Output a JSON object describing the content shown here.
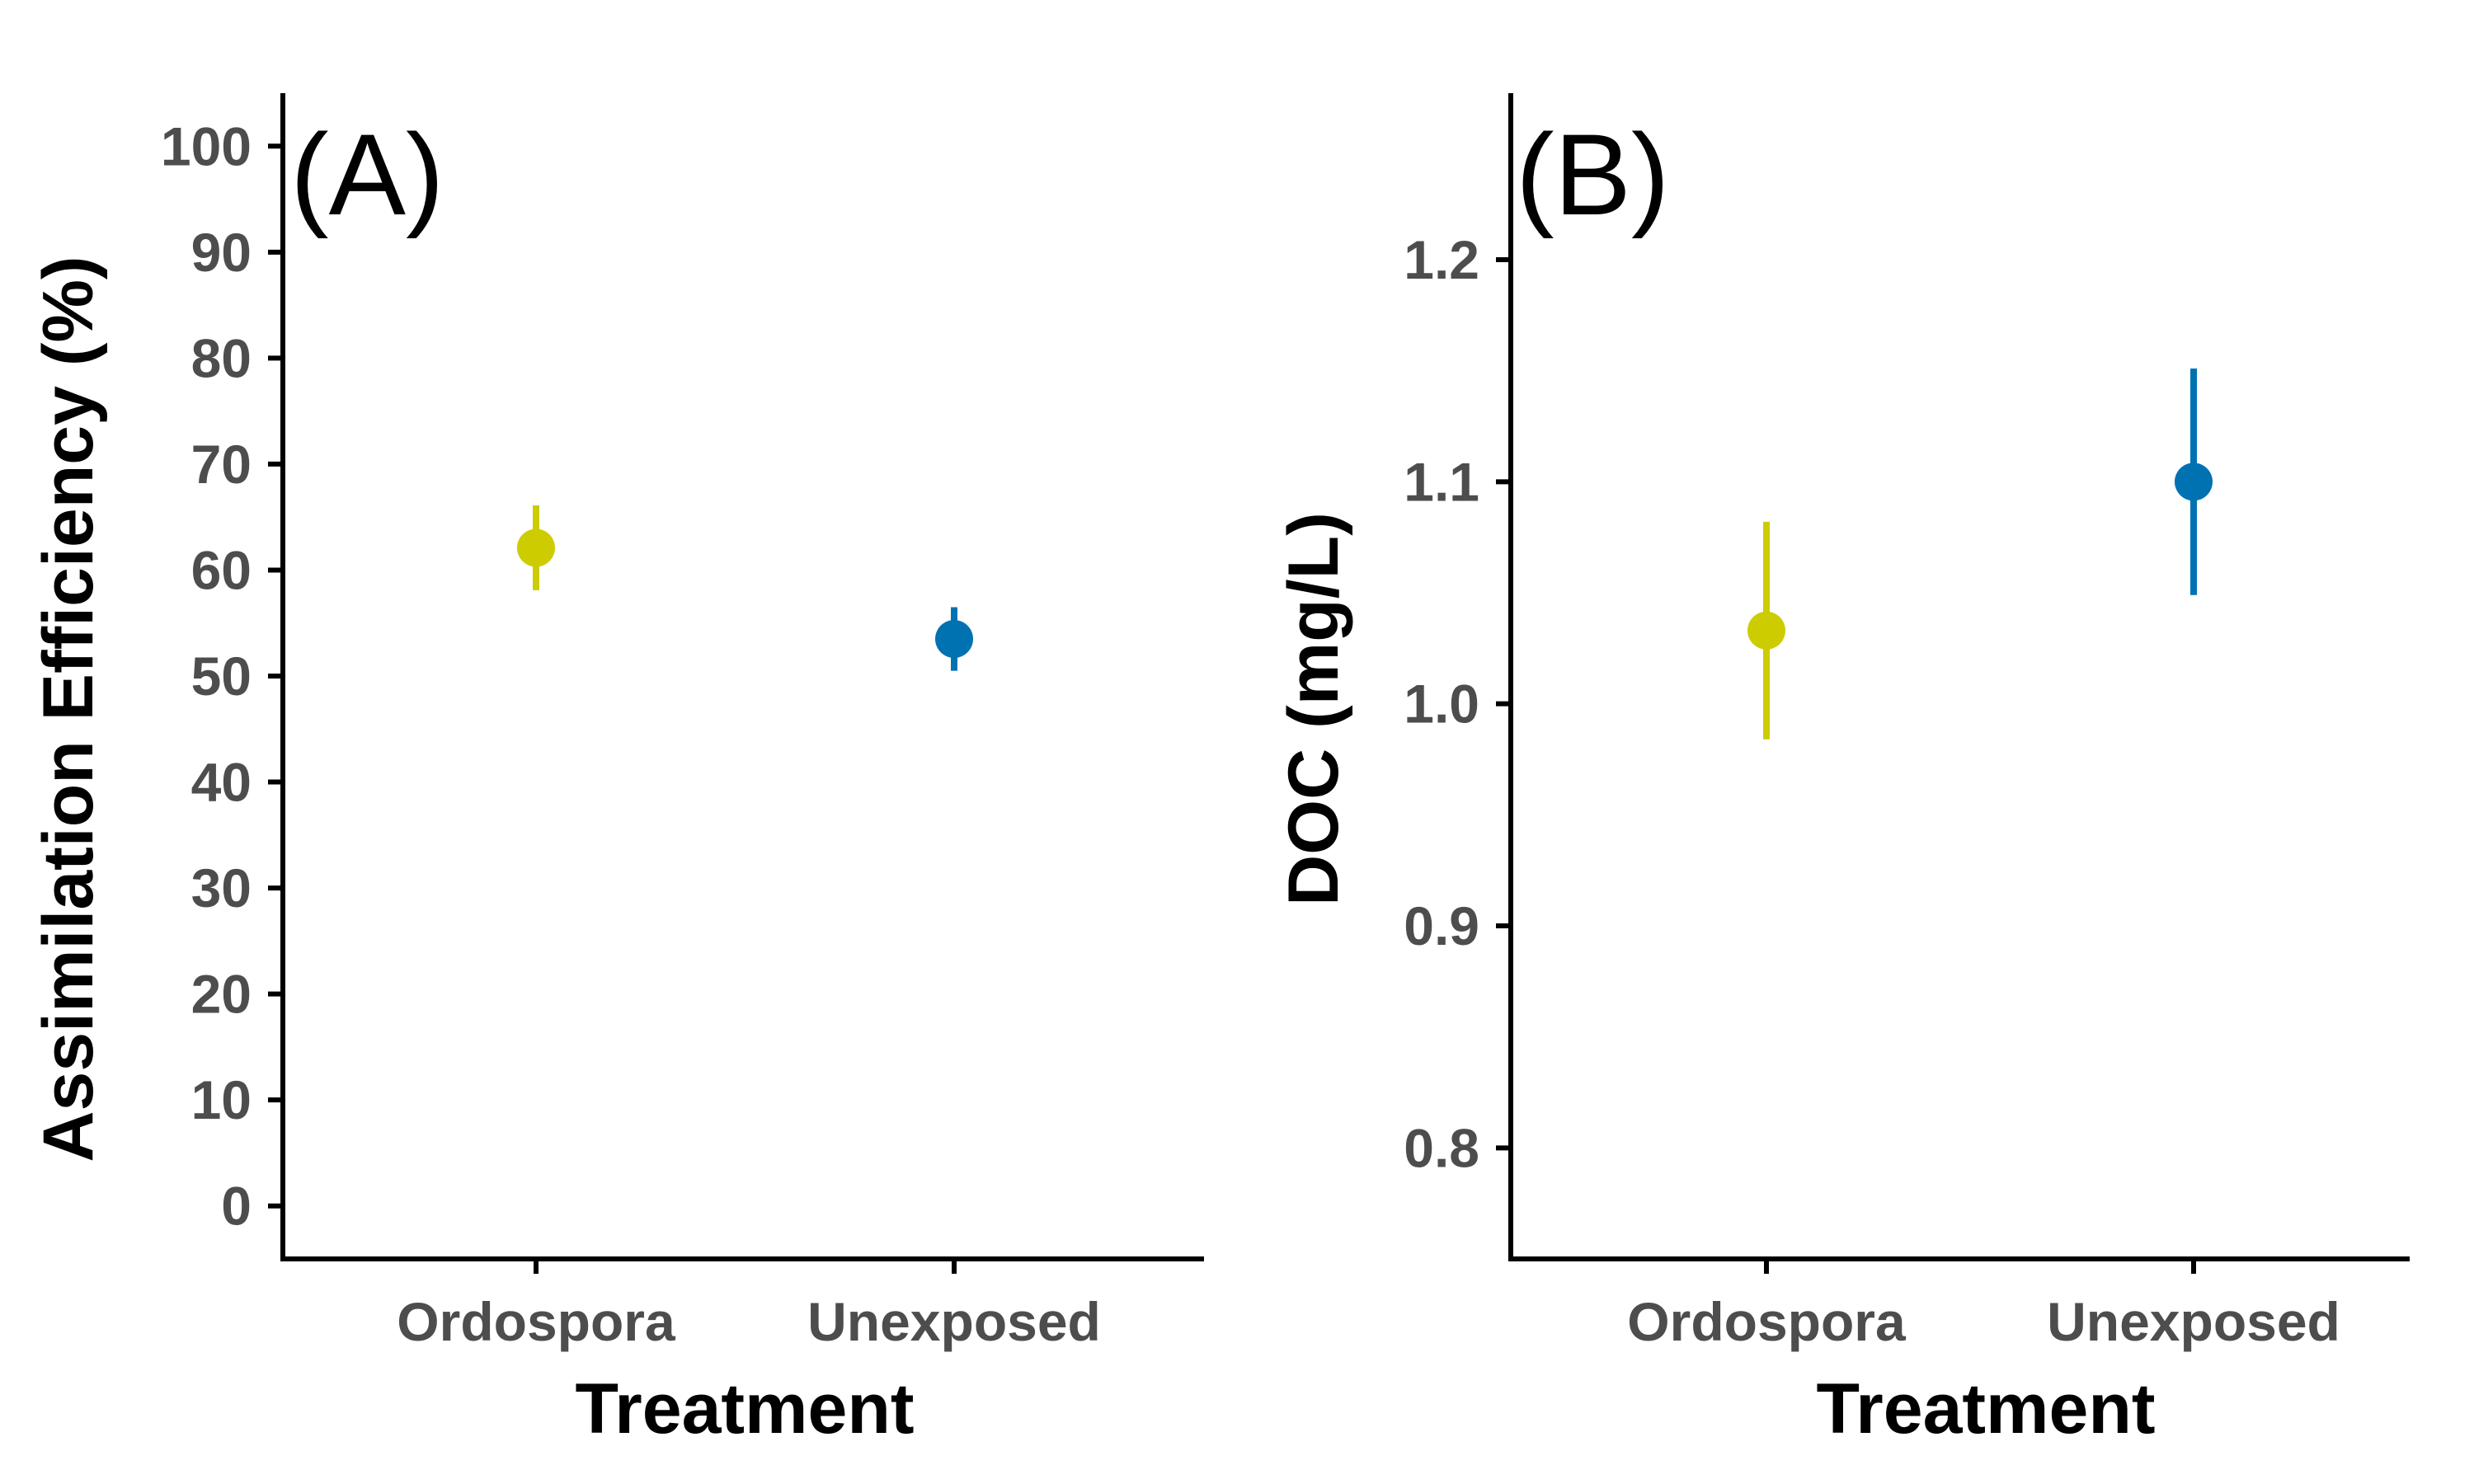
{
  "chart_data": [
    {
      "type": "scatter",
      "panel_label": "(A)",
      "xlabel": "Treatment",
      "ylabel": "Assimilation Efficiency (%)",
      "categories": [
        "Ordospora",
        "Unexposed"
      ],
      "ylim": [
        -5,
        105
      ],
      "yticks": [
        0,
        10,
        20,
        30,
        40,
        50,
        60,
        70,
        80,
        90,
        100
      ],
      "ytick_labels": [
        "0",
        "10",
        "20",
        "30",
        "40",
        "50",
        "60",
        "70",
        "80",
        "90",
        "100"
      ],
      "points": [
        {
          "category": "Ordospora",
          "mean": 62.1,
          "lower": 58.1,
          "upper": 66.1,
          "color": "#cccc00"
        },
        {
          "category": "Unexposed",
          "mean": 53.5,
          "lower": 50.5,
          "upper": 56.5,
          "color": "#0072b2"
        }
      ],
      "grid": false
    },
    {
      "type": "scatter",
      "panel_label": "(B)",
      "xlabel": "Treatment",
      "ylabel": "DOC (mg/L)",
      "categories": [
        "Ordospora",
        "Unexposed"
      ],
      "ylim": [
        0.75,
        1.275
      ],
      "yticks": [
        0.8,
        0.9,
        1.0,
        1.1,
        1.2
      ],
      "ytick_labels": [
        "0.8",
        "0.9",
        "1.0",
        "1.1",
        "1.2"
      ],
      "points": [
        {
          "category": "Ordospora",
          "mean": 1.033,
          "lower": 0.984,
          "upper": 1.082,
          "color": "#cccc00"
        },
        {
          "category": "Unexposed",
          "mean": 1.1,
          "lower": 1.049,
          "upper": 1.151,
          "color": "#0072b2"
        }
      ],
      "grid": false
    }
  ]
}
